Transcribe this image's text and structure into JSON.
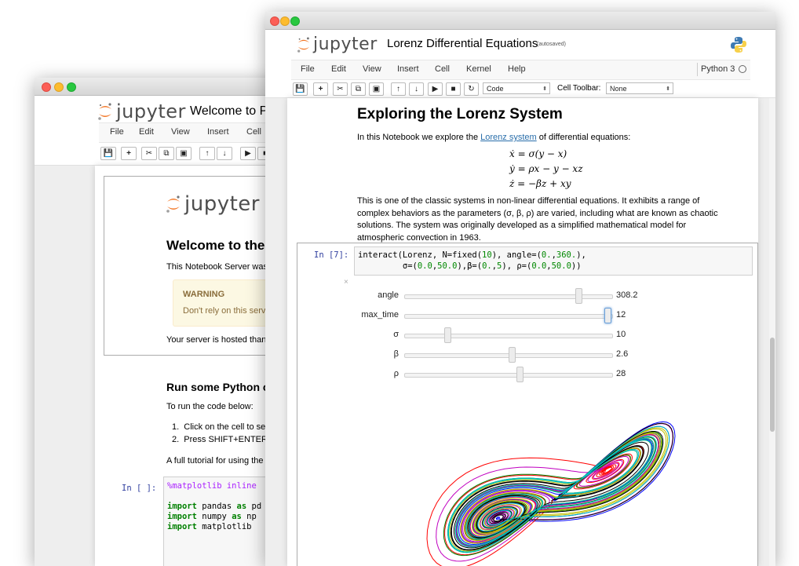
{
  "back_window": {
    "logo_text": "jupyter",
    "notebook_title": "Welcome to Python",
    "menu": [
      "File",
      "Edit",
      "View",
      "Insert",
      "Cell"
    ],
    "content": {
      "logo_text": "jupyter",
      "heading": "Welcome to the",
      "intro": "This Notebook Server was",
      "warning_title": "WARNING",
      "warning_text": "Don't rely on this serv",
      "hosted": "Your server is hosted than",
      "run_heading": "Run some Python c",
      "run_intro": "To run the code below:",
      "steps": [
        "Click on the cell to se",
        "Press SHIFT+ENTER"
      ],
      "tutorial": "A full tutorial for using the",
      "prompt": "In [ ]:",
      "code_lines": [
        [
          {
            "t": "%matplotlib inline",
            "c": "mag"
          }
        ],
        [],
        [
          {
            "t": "import",
            "c": "kw"
          },
          {
            "t": " pandas ",
            "c": ""
          },
          {
            "t": "as",
            "c": "kw"
          },
          {
            "t": " pd",
            "c": ""
          }
        ],
        [
          {
            "t": "import",
            "c": "kw"
          },
          {
            "t": " numpy ",
            "c": ""
          },
          {
            "t": "as",
            "c": "kw"
          },
          {
            "t": " np",
            "c": ""
          }
        ],
        [
          {
            "t": "import",
            "c": "kw"
          },
          {
            "t": " matplotlib",
            "c": ""
          }
        ]
      ]
    }
  },
  "front_window": {
    "logo_text": "jupyter",
    "notebook_title": "Lorenz Differential Equations",
    "autosave": "(autosaved)",
    "menu": [
      "File",
      "Edit",
      "View",
      "Insert",
      "Cell",
      "Kernel",
      "Help"
    ],
    "kernel": "Python 3",
    "toolbar": {
      "cell_type": "Code",
      "cell_toolbar_label": "Cell Toolbar:",
      "cell_toolbar_value": "None"
    },
    "markdown": {
      "heading": "Exploring the Lorenz System",
      "intro_pre": "In this Notebook we explore the ",
      "intro_link": "Lorenz system",
      "intro_post": " of differential equations:",
      "equations": [
        "ẋ = σ(y − x)",
        "ẏ = ρx − y − xz",
        "ż = −βz + xy"
      ],
      "para_lines": [
        "This is one of the classic systems in non-linear differential equations. It exhibits a range of",
        "complex behaviors as the parameters (σ, β, ρ) are varied, including what are known as chaotic",
        "solutions. The system was originally developed as a simplified mathematical model for",
        "atmospheric convection in 1963."
      ]
    },
    "code_cell": {
      "prompt": "In [7]:",
      "lines": [
        "interact(Lorenz, N=fixed(10), angle=(0.,360.),",
        "         σ=(0.0,50.0),β=(0.,5), ρ=(0.0,50.0))"
      ],
      "close_glyph": "×"
    },
    "sliders": [
      {
        "label": "angle",
        "value": "308.2",
        "fraction": 0.856
      },
      {
        "label": "max_time",
        "value": "12",
        "fraction": 1.0
      },
      {
        "label": "σ",
        "value": "10",
        "fraction": 0.2
      },
      {
        "label": "β",
        "value": "2.6",
        "fraction": 0.52
      },
      {
        "label": "ρ",
        "value": "28",
        "fraction": 0.56
      }
    ],
    "plot": {
      "colors": [
        "#0000ff",
        "#ff0000",
        "#008000",
        "#c000c0",
        "#c0c000",
        "#000000",
        "#00bfbf"
      ]
    }
  }
}
